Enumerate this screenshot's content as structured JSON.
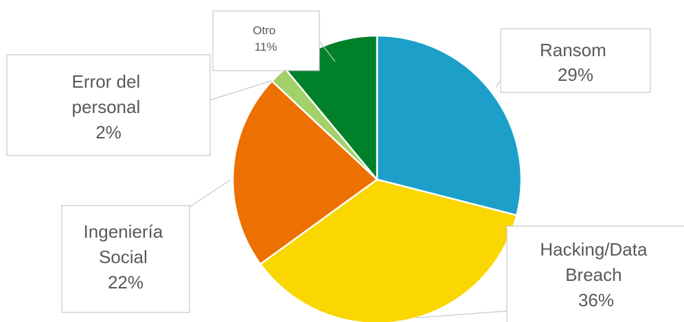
{
  "chart_data": {
    "type": "pie",
    "slices": [
      {
        "label_lines": [
          "Ransom",
          "29%"
        ],
        "value": 29,
        "color": "#1ca0c9"
      },
      {
        "label_lines": [
          "Hacking/Data",
          "Breach",
          "36%"
        ],
        "value": 36,
        "color": "#fad700"
      },
      {
        "label_lines": [
          "Ingeniería",
          "Social",
          "22%"
        ],
        "value": 22,
        "color": "#ed7003"
      },
      {
        "label_lines": [
          "Error del",
          "personal",
          "2%"
        ],
        "value": 2,
        "color": "#a2d069"
      },
      {
        "label_lines": [
          "Otro",
          "11%"
        ],
        "value": 11,
        "color": "#008029"
      }
    ],
    "start_angle_deg": 0,
    "direction": "clockwise"
  }
}
